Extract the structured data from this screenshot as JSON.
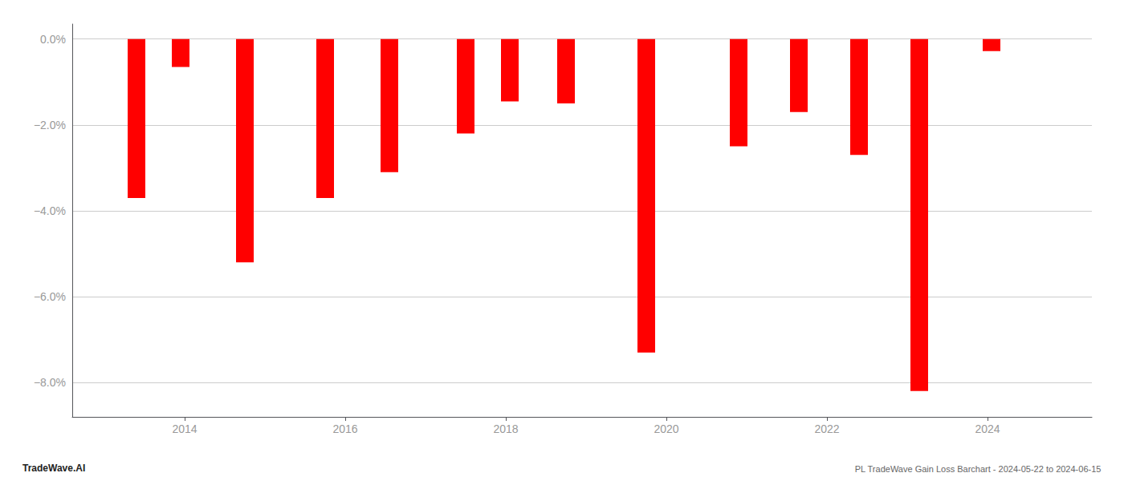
{
  "chart_data": {
    "type": "bar",
    "x": [
      2013.4,
      2013.95,
      2014.75,
      2015.75,
      2016.55,
      2017.5,
      2018.05,
      2018.75,
      2019.75,
      2020.9,
      2021.65,
      2022.4,
      2023.15,
      2024.05
    ],
    "values": [
      -3.7,
      -0.65,
      -5.2,
      -3.7,
      -3.1,
      -2.2,
      -1.45,
      -1.5,
      -7.3,
      -2.5,
      -1.7,
      -2.7,
      -8.2,
      -0.28
    ],
    "color": "#ff0000",
    "xlim": [
      2012.6,
      2025.3
    ],
    "xticks": [
      2014,
      2016,
      2018,
      2020,
      2022,
      2024
    ],
    "ylim": [
      -8.8,
      0.35
    ],
    "yticks": [
      {
        "value": 0.0,
        "label": "0.0%"
      },
      {
        "value": -2.0,
        "label": "−2.0%"
      },
      {
        "value": -4.0,
        "label": "−4.0%"
      },
      {
        "value": -6.0,
        "label": "−6.0%"
      },
      {
        "value": -8.0,
        "label": "−8.0%"
      }
    ],
    "grid": true,
    "annotations": [
      "TradeWave.AI",
      "PL TradeWave Gain Loss Barchart - 2024-05-22 to 2024-06-15"
    ]
  }
}
